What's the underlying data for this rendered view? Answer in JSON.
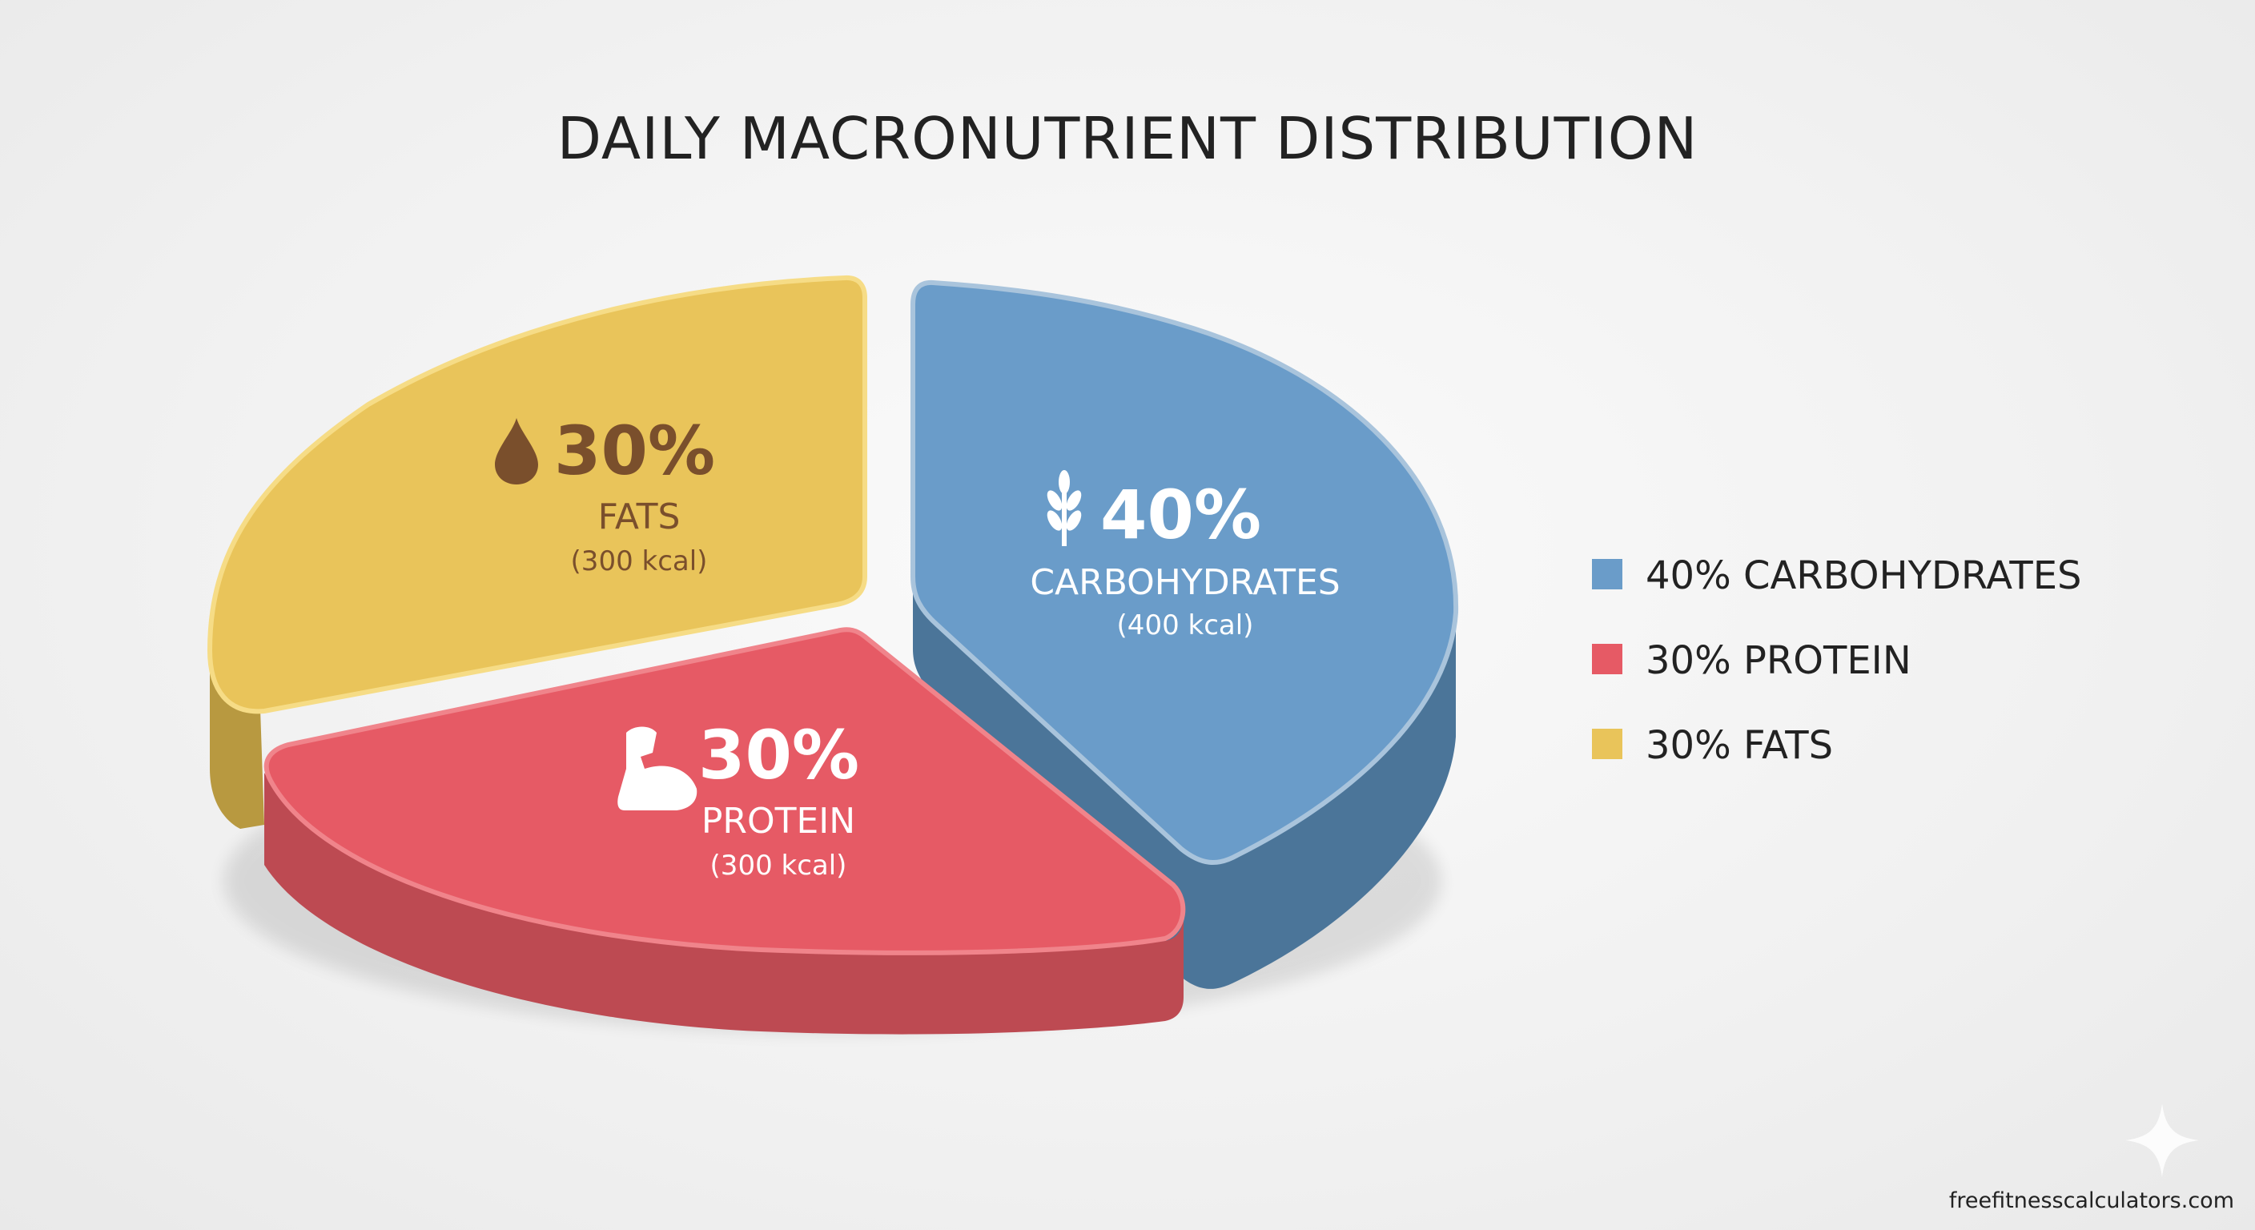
{
  "chart_data": {
    "type": "pie",
    "title": "DAILY MACRONUTRIENT DISTRIBUTION",
    "slices": [
      {
        "label": "CARBOHYDRATES",
        "value": 40,
        "percent_label": "40%",
        "kcal_label": "(400 kcal)",
        "legend_label": "40% CARBOHYDRATES",
        "color": "#6a9cc9",
        "side_color": "#4b7599",
        "icon": "wheat-icon"
      },
      {
        "label": "PROTEIN",
        "value": 30,
        "percent_label": "30%",
        "kcal_label": "(300 kcal)",
        "legend_label": "30% PROTEIN",
        "color": "#e65a65",
        "side_color": "#bd4a52",
        "icon": "flexed-arm-icon"
      },
      {
        "label": "FATS",
        "value": 30,
        "percent_label": "30%",
        "kcal_label": "(300 kcal)",
        "legend_label": "30% FATS",
        "color": "#e9c45a",
        "side_color": "#b89940",
        "icon": "droplet-icon"
      }
    ],
    "legend_position": "right"
  },
  "footer": "freefitnesscalculators.com"
}
